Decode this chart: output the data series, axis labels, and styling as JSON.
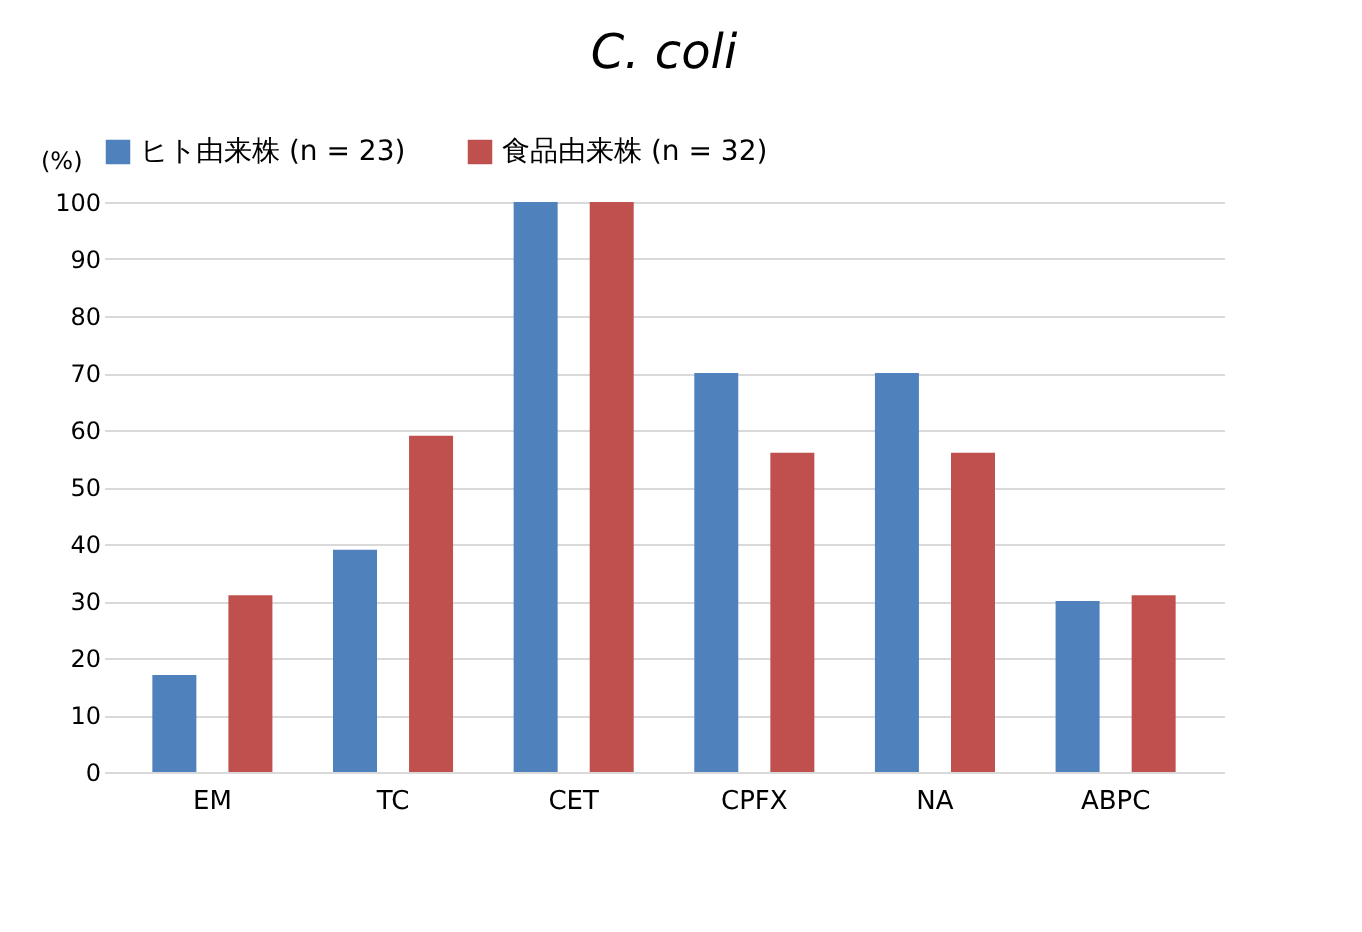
{
  "chart_data": {
    "type": "bar",
    "title": "C. coli",
    "ylabel": "(%)",
    "categories": [
      "EM",
      "TC",
      "CET",
      "CPFX",
      "NA",
      "ABPC"
    ],
    "series": [
      {
        "name": "ヒト由来株 (n = 23)",
        "color": "#4f81bd",
        "values": [
          17,
          39,
          100,
          70,
          70,
          30
        ]
      },
      {
        "name": "食品由来株 (n = 32)",
        "color": "#c0504d",
        "values": [
          31,
          59,
          100,
          56,
          56,
          31
        ]
      }
    ],
    "ylim": [
      0,
      100
    ],
    "yticks": [
      0,
      10,
      20,
      30,
      40,
      50,
      60,
      70,
      80,
      90,
      100
    ],
    "grid": "y",
    "legend": "top"
  }
}
